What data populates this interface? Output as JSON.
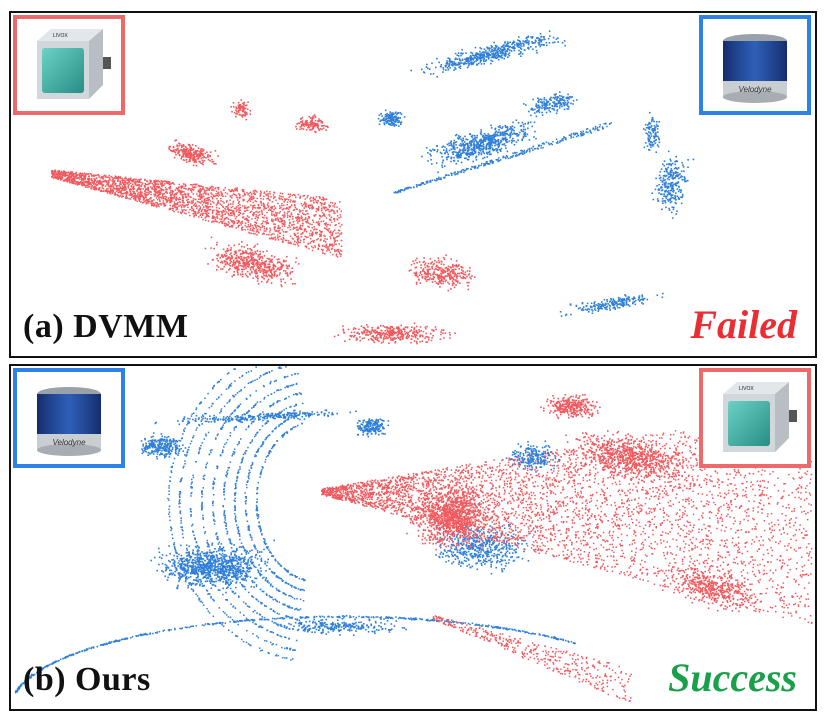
{
  "panels": [
    {
      "caption": "(a) DVMM",
      "status": "Failed",
      "left_sensor": "livox-lidar-icon",
      "right_sensor": "velodyne-lidar-icon"
    },
    {
      "caption": "(b) Ours",
      "status": "Success",
      "left_sensor": "velodyne-lidar-icon",
      "right_sensor": "livox-lidar-icon"
    }
  ],
  "sensor_labels": {
    "livox": "LIVOX",
    "velodyne": "Velodyne"
  },
  "colors": {
    "red_cloud": "#f05a5f",
    "blue_cloud": "#2f7fd8",
    "failed": "#ea2d33",
    "success": "#1aa04a",
    "box_red": "#ee6a6a",
    "box_blue": "#2e82e6"
  }
}
